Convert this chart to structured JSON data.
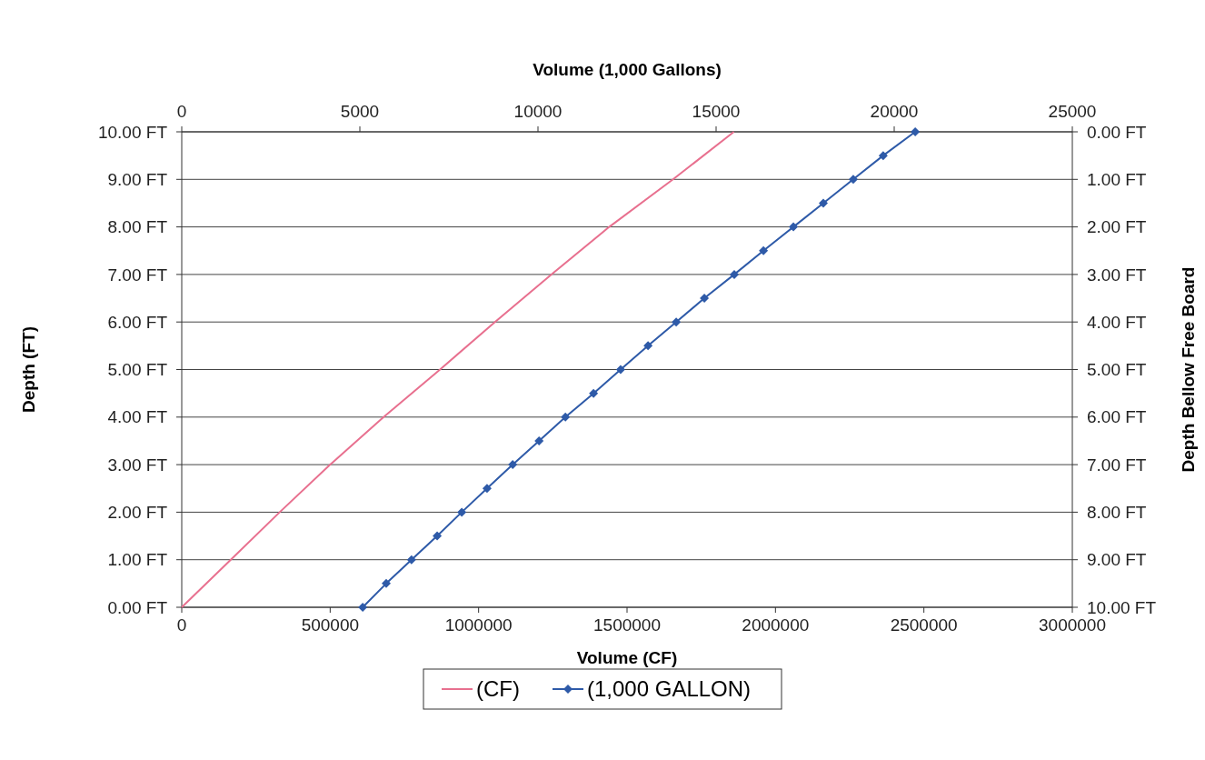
{
  "chart_data": {
    "type": "line",
    "xlabel": "Volume (CF)",
    "x2label": "Volume (1,000 Gallons)",
    "ylabel": "Depth (FT)",
    "y2label": "Depth Bellow Free Board",
    "xlim": [
      0,
      3000000
    ],
    "xticks": [
      0,
      500000,
      1000000,
      1500000,
      2000000,
      2500000,
      3000000
    ],
    "x2lim": [
      0,
      25000
    ],
    "x2ticks": [
      0,
      5000,
      10000,
      15000,
      20000,
      25000
    ],
    "ylim": [
      0,
      10
    ],
    "yticks": [
      {
        "value": 0,
        "label": "0.00 FT"
      },
      {
        "value": 1,
        "label": "1.00 FT"
      },
      {
        "value": 2,
        "label": "2.00 FT"
      },
      {
        "value": 3,
        "label": "3.00 FT"
      },
      {
        "value": 4,
        "label": "4.00 FT"
      },
      {
        "value": 5,
        "label": "5.00 FT"
      },
      {
        "value": 6,
        "label": "6.00 FT"
      },
      {
        "value": 7,
        "label": "7.00 FT"
      },
      {
        "value": 8,
        "label": "8.00 FT"
      },
      {
        "value": 9,
        "label": "9.00 FT"
      },
      {
        "value": 10,
        "label": "10.00 FT"
      }
    ],
    "y2lim": [
      10,
      0
    ],
    "y2ticks": [
      {
        "value": 0,
        "label": "0.00 FT"
      },
      {
        "value": 1,
        "label": "1.00 FT"
      },
      {
        "value": 2,
        "label": "2.00 FT"
      },
      {
        "value": 3,
        "label": "3.00 FT"
      },
      {
        "value": 4,
        "label": "4.00 FT"
      },
      {
        "value": 5,
        "label": "5.00 FT"
      },
      {
        "value": 6,
        "label": "6.00 FT"
      },
      {
        "value": 7,
        "label": "7.00 FT"
      },
      {
        "value": 8,
        "label": "8.00 FT"
      },
      {
        "value": 9,
        "label": "9.00 FT"
      },
      {
        "value": 10,
        "label": "10.00 FT"
      }
    ],
    "grid": "y",
    "legend": "bottom",
    "series": [
      {
        "name": "(CF)",
        "color": "#e8708f",
        "marker": "none",
        "x": [
          0,
          165000,
          330000,
          500000,
          680000,
          870000,
          1055000,
          1245000,
          1440000,
          1655000,
          1860000
        ],
        "values": [
          0,
          1,
          2,
          3,
          4,
          5,
          6,
          7,
          8,
          9,
          10
        ]
      },
      {
        "name": "(1,000 GALLON)",
        "color": "#2e5aa8",
        "marker": "diamond",
        "axis": "x2",
        "x": [
          5080,
          5740,
          6450,
          7170,
          7860,
          8570,
          9290,
          10030,
          10770,
          11560,
          12320,
          13090,
          13880,
          14670,
          15510,
          16330,
          17170,
          18010,
          18850,
          19690,
          20590
        ],
        "values": [
          0,
          0.5,
          1,
          1.5,
          2,
          2.5,
          3,
          3.5,
          4,
          4.5,
          5,
          5.5,
          6,
          6.5,
          7,
          7.5,
          8,
          8.5,
          9,
          9.5,
          10
        ]
      }
    ]
  }
}
